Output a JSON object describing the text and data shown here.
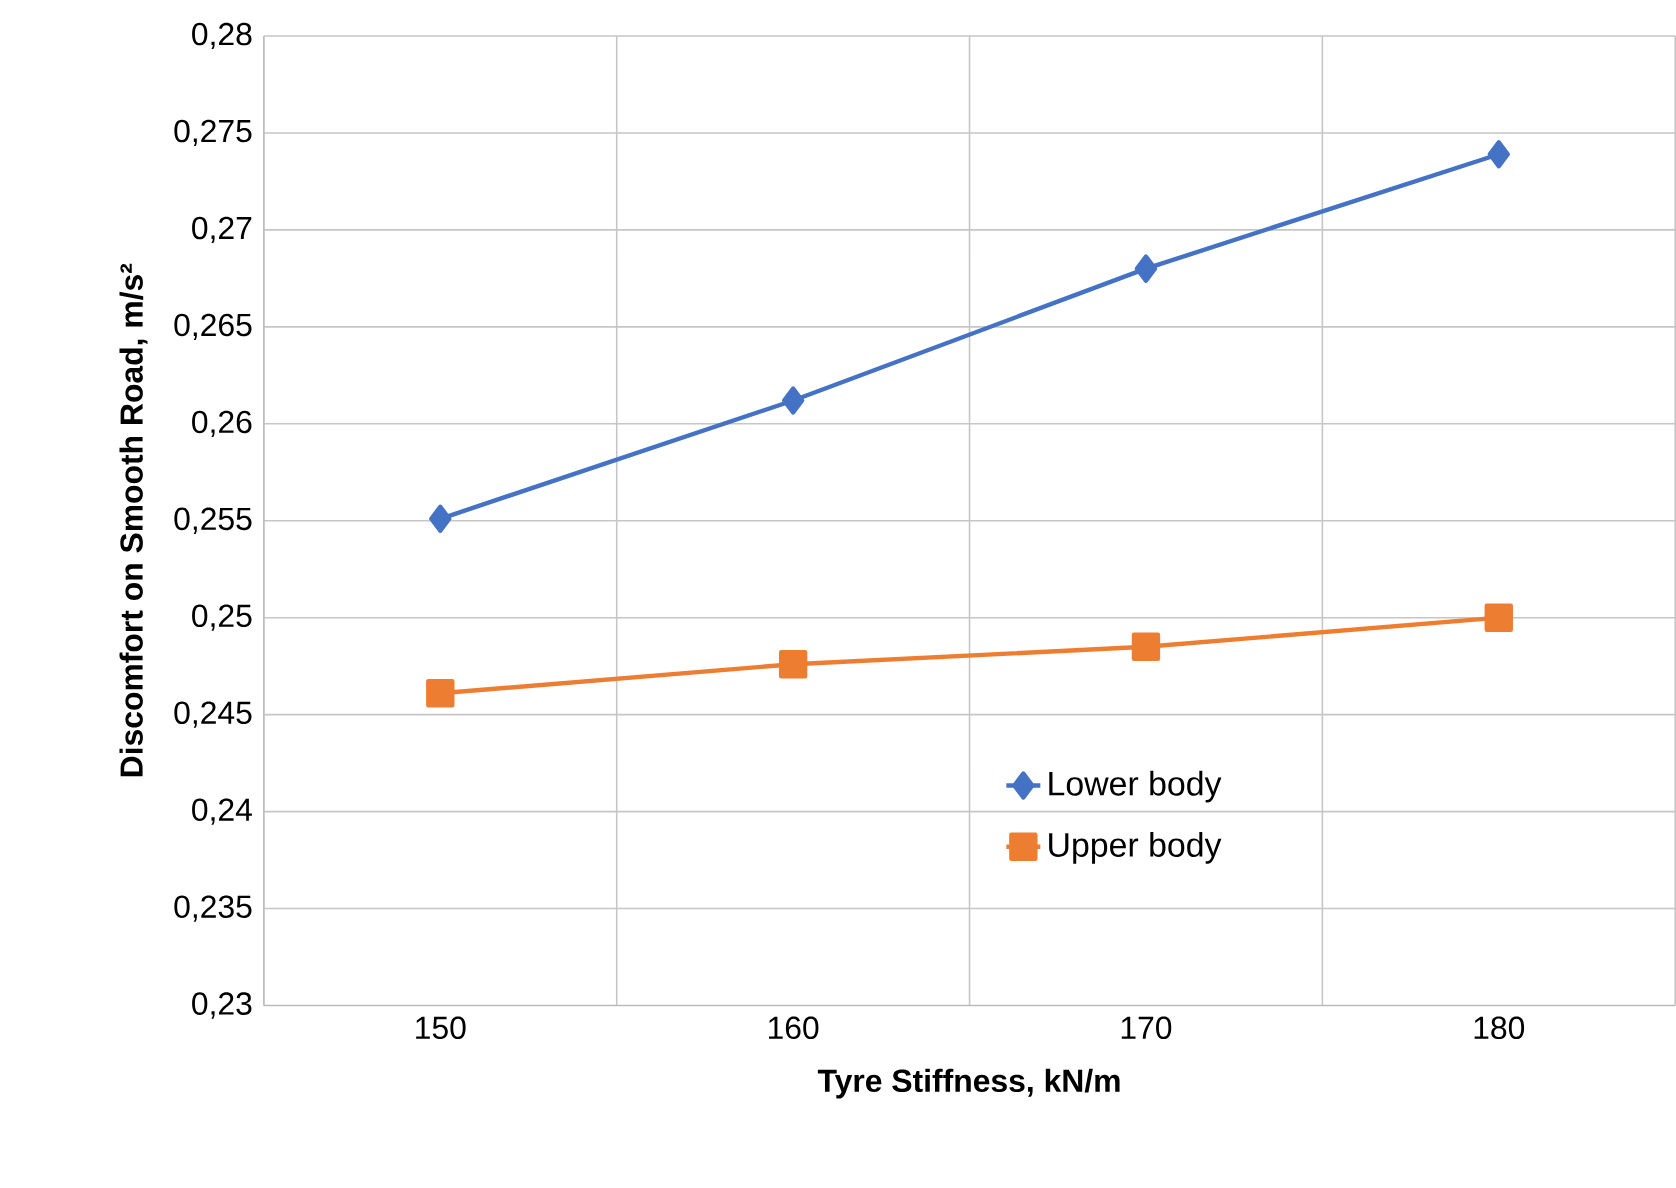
{
  "chart_data": {
    "type": "line",
    "xlabel": "Tyre Stiffness, kN/m",
    "ylabel": "Discomfort on Smooth Road, m/s²",
    "categories": [
      "150",
      "160",
      "170",
      "180"
    ],
    "series": [
      {
        "name": "Lower body",
        "color": "#4472c4",
        "marker": "diamond",
        "values": [
          0.2551,
          0.2612,
          0.268,
          0.2739
        ]
      },
      {
        "name": "Upper body",
        "color": "#ed7d31",
        "marker": "square",
        "values": [
          0.2461,
          0.2476,
          0.2485,
          0.25
        ]
      }
    ],
    "ylim": [
      0.23,
      0.28
    ],
    "yticks": [
      {
        "value": 0.23,
        "label": "0,23"
      },
      {
        "value": 0.235,
        "label": "0,235"
      },
      {
        "value": 0.24,
        "label": "0,24"
      },
      {
        "value": 0.245,
        "label": "0,245"
      },
      {
        "value": 0.25,
        "label": "0,25"
      },
      {
        "value": 0.255,
        "label": "0,255"
      },
      {
        "value": 0.26,
        "label": "0,26"
      },
      {
        "value": 0.265,
        "label": "0,265"
      },
      {
        "value": 0.27,
        "label": "0,27"
      },
      {
        "value": 0.275,
        "label": "0,275"
      },
      {
        "value": 0.28,
        "label": "0,28"
      }
    ],
    "grid": true,
    "legend": "bottom right",
    "line_style": "solid"
  }
}
